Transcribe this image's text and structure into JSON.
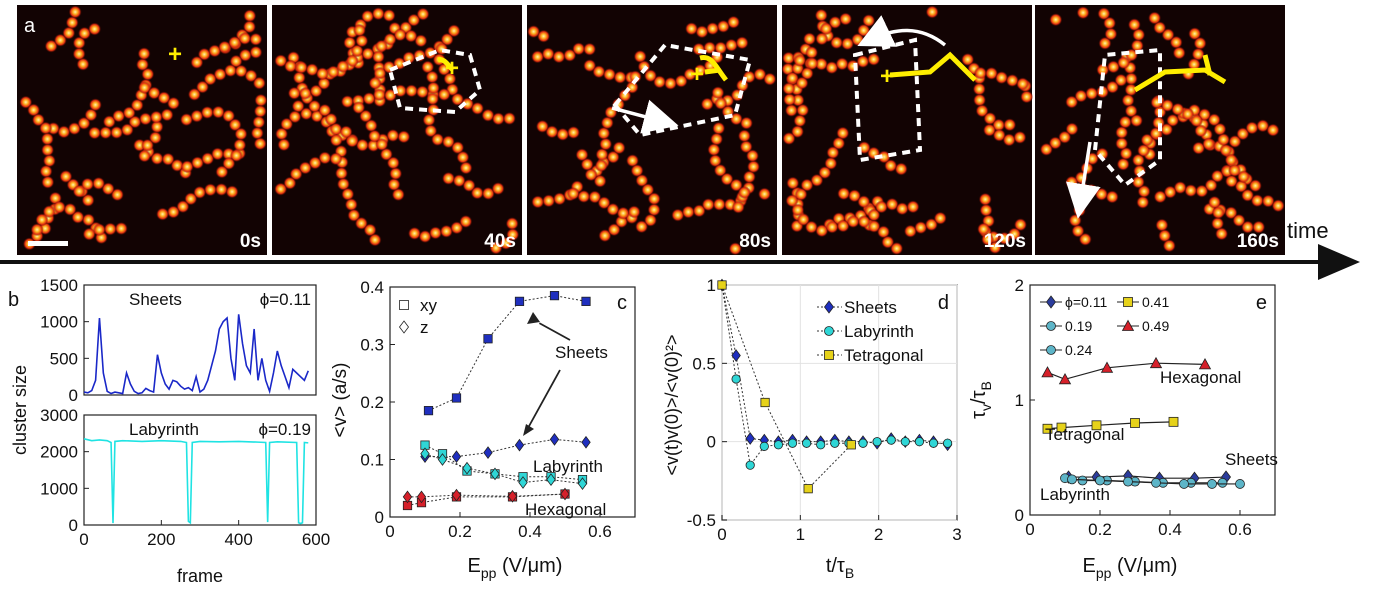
{
  "figure": {
    "time_label": "time",
    "colors": {
      "sheets": "#1f2fbf",
      "labyrinth": "#2fd6d6",
      "tetragonal": "#e6d21a",
      "hexagonal": "#d6202a",
      "line_b_sheets": "#1a28c8",
      "line_b_labyrinth": "#1fe3e3"
    }
  },
  "panel_a": {
    "letter": "a",
    "frames": [
      {
        "time": "0s"
      },
      {
        "time": "40s"
      },
      {
        "time": "80s"
      },
      {
        "time": "120s"
      },
      {
        "time": "160s"
      }
    ]
  },
  "chart_data": [
    {
      "id": "b",
      "letter": "b",
      "type": "line",
      "xlabel": "frame",
      "ylabel": "cluster size",
      "subplots": [
        {
          "name": "Sheets",
          "phi": "ϕ=0.11",
          "ylim": [
            0,
            1500
          ],
          "yticks": [
            "0",
            "500",
            "1000",
            "1500"
          ],
          "x": [
            0,
            10,
            20,
            30,
            40,
            50,
            60,
            70,
            80,
            90,
            100,
            110,
            120,
            130,
            140,
            150,
            160,
            170,
            180,
            190,
            200,
            210,
            220,
            230,
            240,
            250,
            260,
            270,
            280,
            290,
            300,
            310,
            320,
            330,
            340,
            350,
            360,
            370,
            380,
            390,
            400,
            410,
            420,
            430,
            440,
            450,
            460,
            470,
            480,
            490,
            500,
            510,
            520,
            530,
            540,
            550,
            560,
            570,
            580
          ],
          "values": [
            40,
            30,
            60,
            200,
            1050,
            300,
            50,
            20,
            40,
            30,
            20,
            300,
            150,
            50,
            20,
            30,
            90,
            60,
            40,
            550,
            300,
            150,
            80,
            200,
            180,
            120,
            80,
            100,
            60,
            250,
            40,
            80,
            200,
            400,
            600,
            900,
            1000,
            1050,
            500,
            200,
            1100,
            700,
            400,
            300,
            900,
            200,
            500,
            200,
            50,
            300,
            600,
            400,
            250,
            100,
            350,
            300,
            250,
            200,
            330
          ]
        },
        {
          "name": "Labyrinth",
          "phi": "ϕ=0.19",
          "ylim": [
            0,
            3000
          ],
          "yticks": [
            "0",
            "1000",
            "2000",
            "3000"
          ],
          "x": [
            0,
            20,
            40,
            60,
            70,
            75,
            80,
            100,
            150,
            200,
            250,
            265,
            270,
            275,
            280,
            300,
            350,
            400,
            450,
            470,
            475,
            480,
            500,
            550,
            555,
            560,
            565,
            570,
            580
          ],
          "values": [
            2350,
            2300,
            2320,
            2300,
            2250,
            50,
            2280,
            2300,
            2280,
            2300,
            2280,
            2250,
            100,
            60,
            2250,
            2280,
            2270,
            2280,
            2260,
            2250,
            80,
            2250,
            2270,
            2250,
            60,
            40,
            60,
            2250,
            2240
          ]
        }
      ],
      "xlim": [
        0,
        600
      ],
      "xticks": [
        "0",
        "200",
        "400",
        "600"
      ]
    },
    {
      "id": "c",
      "letter": "c",
      "type": "scatter",
      "xlabel": "E",
      "xlabel_sub": "pp",
      "xlabel_unit": "(V/μm)",
      "ylabel": "<v> (a/s)",
      "xlim": [
        0,
        0.7
      ],
      "ylim": [
        0,
        0.4
      ],
      "xticks": [
        "0",
        "0.2",
        "0.4",
        "0.6"
      ],
      "yticks": [
        "0",
        "0.1",
        "0.2",
        "0.3",
        "0.4"
      ],
      "legend": [
        {
          "marker": "square",
          "label": "xy"
        },
        {
          "marker": "diamond",
          "label": "z"
        }
      ],
      "annotations": [
        "Sheets",
        "Labyrinth",
        "Hexagonal"
      ],
      "series": [
        {
          "name": "Sheets",
          "marker": "square",
          "x": [
            0.11,
            0.19,
            0.28,
            0.37,
            0.47,
            0.56
          ],
          "values": [
            0.185,
            0.207,
            0.31,
            0.375,
            0.385,
            0.375
          ]
        },
        {
          "name": "Sheets",
          "marker": "diamond",
          "x": [
            0.1,
            0.19,
            0.28,
            0.37,
            0.47,
            0.56
          ],
          "values": [
            0.105,
            0.105,
            0.112,
            0.125,
            0.135,
            0.13
          ]
        },
        {
          "name": "Labyrinth",
          "marker": "square",
          "x": [
            0.1,
            0.15,
            0.22,
            0.3,
            0.38,
            0.46,
            0.55
          ],
          "values": [
            0.125,
            0.11,
            0.08,
            0.075,
            0.07,
            0.07,
            0.065
          ]
        },
        {
          "name": "Labyrinth",
          "marker": "diamond",
          "x": [
            0.1,
            0.15,
            0.22,
            0.3,
            0.38,
            0.46,
            0.55
          ],
          "values": [
            0.11,
            0.1,
            0.085,
            0.075,
            0.06,
            0.065,
            0.058
          ]
        },
        {
          "name": "Hexagonal",
          "marker": "square",
          "x": [
            0.05,
            0.09,
            0.19,
            0.35,
            0.5
          ],
          "values": [
            0.02,
            0.025,
            0.035,
            0.035,
            0.04
          ]
        },
        {
          "name": "Hexagonal",
          "marker": "diamond",
          "x": [
            0.05,
            0.09,
            0.19,
            0.35,
            0.5
          ],
          "values": [
            0.035,
            0.035,
            0.038,
            0.036,
            0.04
          ]
        }
      ]
    },
    {
      "id": "d",
      "letter": "d",
      "type": "line",
      "xlabel": "t/τ",
      "xlabel_sub": "B",
      "ylabel": "<v(t)v(0)>/<v(0)²>",
      "xlim": [
        0,
        3
      ],
      "ylim": [
        -0.5,
        1
      ],
      "xticks": [
        "0",
        "1",
        "2",
        "3"
      ],
      "yticks": [
        "-0.5",
        "0",
        "0.5",
        "1"
      ],
      "series": [
        {
          "name": "Sheets",
          "marker": "diamond",
          "x": [
            0,
            0.18,
            0.36,
            0.54,
            0.72,
            0.9,
            1.08,
            1.26,
            1.44,
            1.62,
            1.8,
            1.98,
            2.16,
            2.34,
            2.52,
            2.7,
            2.88
          ],
          "values": [
            1,
            0.55,
            0.02,
            0.01,
            0.0,
            0.01,
            0.0,
            0.0,
            0.01,
            0.0,
            0.0,
            -0.01,
            0.02,
            0.0,
            0.01,
            0.0,
            -0.02
          ]
        },
        {
          "name": "Labyrinth",
          "marker": "circle",
          "x": [
            0,
            0.18,
            0.36,
            0.54,
            0.72,
            0.9,
            1.08,
            1.26,
            1.44,
            1.62,
            1.8,
            1.98,
            2.16,
            2.34,
            2.52,
            2.7,
            2.88
          ],
          "values": [
            1,
            0.4,
            -0.15,
            -0.03,
            -0.02,
            -0.01,
            -0.01,
            -0.02,
            -0.01,
            -0.01,
            -0.01,
            0.0,
            0.01,
            0.0,
            0.0,
            -0.01,
            -0.01
          ]
        },
        {
          "name": "Tetragonal",
          "marker": "square",
          "x": [
            0,
            0.55,
            1.1,
            1.65
          ],
          "values": [
            1,
            0.25,
            -0.3,
            -0.02
          ]
        }
      ]
    },
    {
      "id": "e",
      "letter": "e",
      "type": "line",
      "xlabel": "E",
      "xlabel_sub": "pp",
      "xlabel_unit": "(V/μm)",
      "ylabel": "τ",
      "ylabel_sub": "v",
      "ylabel_rest": "/τ",
      "ylabel_sub2": "B",
      "xlim": [
        0,
        0.7
      ],
      "ylim": [
        0,
        2
      ],
      "xticks": [
        "0",
        "0.2",
        "0.4",
        "0.6"
      ],
      "yticks": [
        "0",
        "1",
        "2"
      ],
      "legend": [
        {
          "marker": "diamond",
          "color": "#2b3c9c",
          "label": "ϕ=0.11"
        },
        {
          "marker": "circle",
          "color": "#5db5c8",
          "label": "0.19"
        },
        {
          "marker": "circle",
          "color": "#5db5c8",
          "label": "0.24"
        },
        {
          "marker": "square",
          "color": "#e6d21a",
          "label": "0.41"
        },
        {
          "marker": "triangle",
          "color": "#d6202a",
          "label": "0.49"
        }
      ],
      "annotations": [
        "Hexagonal",
        "Tetragonal",
        "Sheets",
        "Labyrinth"
      ],
      "series": [
        {
          "name": "ϕ=0.11",
          "marker": "diamond",
          "x": [
            0.11,
            0.19,
            0.28,
            0.37,
            0.47,
            0.56
          ],
          "values": [
            0.33,
            0.33,
            0.34,
            0.32,
            0.32,
            0.33
          ]
        },
        {
          "name": "0.19",
          "marker": "circle",
          "x": [
            0.1,
            0.15,
            0.22,
            0.3,
            0.38,
            0.46,
            0.55
          ],
          "values": [
            0.32,
            0.3,
            0.3,
            0.29,
            0.28,
            0.28,
            0.28
          ]
        },
        {
          "name": "0.24",
          "marker": "circle",
          "x": [
            0.12,
            0.2,
            0.28,
            0.36,
            0.44,
            0.52,
            0.6
          ],
          "values": [
            0.31,
            0.3,
            0.29,
            0.28,
            0.27,
            0.27,
            0.27
          ]
        },
        {
          "name": "0.41",
          "marker": "square",
          "x": [
            0.05,
            0.09,
            0.19,
            0.3,
            0.41
          ],
          "values": [
            0.75,
            0.76,
            0.78,
            0.8,
            0.81
          ]
        },
        {
          "name": "0.49",
          "marker": "triangle",
          "x": [
            0.05,
            0.1,
            0.22,
            0.36,
            0.5
          ],
          "values": [
            1.24,
            1.18,
            1.28,
            1.32,
            1.31
          ]
        }
      ]
    }
  ]
}
